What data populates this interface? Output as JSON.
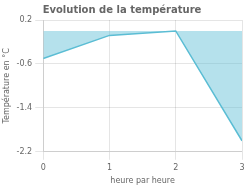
{
  "chart_data": {
    "type": "area",
    "title": "Evolution de la température",
    "xlabel": "heure par heure",
    "ylabel": "Température en °C",
    "x": [
      0,
      1,
      2,
      3
    ],
    "series": [
      {
        "color": "#5bbdd4",
        "values": [
          -0.5,
          -0.08,
          0.0,
          -2.0
        ]
      }
    ],
    "xlim": [
      0,
      3
    ],
    "ylim": [
      -2.2,
      0.2
    ],
    "xticks": [
      0,
      1,
      2,
      3
    ],
    "yticks": [
      0.2,
      -0.6,
      -1.4,
      -2.2
    ],
    "grid": true
  }
}
